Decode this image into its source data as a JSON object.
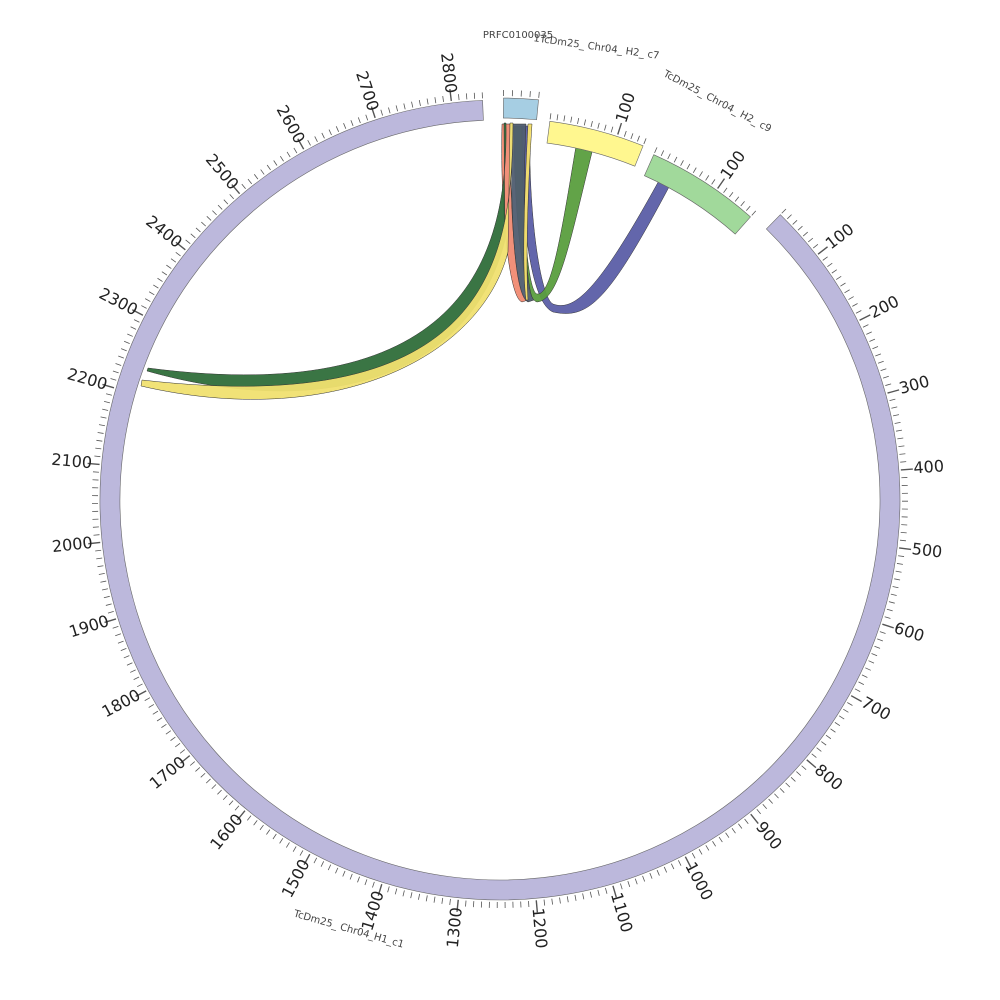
{
  "segments": [
    {
      "id": "h1c1",
      "label": "TcDm25_ Chr04_H1_c1",
      "color": "#bcb8dc",
      "ticks": [
        "100",
        "200",
        "300",
        "400",
        "500",
        "600",
        "700",
        "800",
        "900",
        "1000",
        "1100",
        "1200",
        "1300",
        "1400",
        "1500",
        "1600",
        "1700",
        "1800",
        "1900",
        "2000",
        "2100",
        "2200",
        "2300",
        "2400",
        "2500",
        "2600",
        "2700",
        "2800"
      ]
    },
    {
      "id": "prfc",
      "label": "PRFC0100035",
      "color": "#a6cee3",
      "ticks": []
    },
    {
      "id": "h2c7",
      "label": "1TcDm25_ Chr04_ H2_ c7",
      "color": "#fff78f",
      "ticks": [
        "100"
      ]
    },
    {
      "id": "h2c9",
      "label": "TcDm25_ Chr04_ H2_ c9",
      "color": "#a1d99b",
      "ticks": [
        "100"
      ]
    }
  ],
  "links": [
    {
      "name": "link-h2c9-prfc",
      "color": "#5b5ea6"
    },
    {
      "name": "link-h2c7-prfc",
      "color": "#5a9e3e"
    },
    {
      "name": "link-prfc-red",
      "color": "#f08a72"
    },
    {
      "name": "link-prfc-dark",
      "color": "#4f5d70"
    },
    {
      "name": "link-prfc-yellow",
      "color": "#f7e26b"
    },
    {
      "name": "link-h1c1-green",
      "color": "#2f6e3a"
    },
    {
      "name": "link-h1c1-yellow",
      "color": "#f0e070"
    }
  ]
}
